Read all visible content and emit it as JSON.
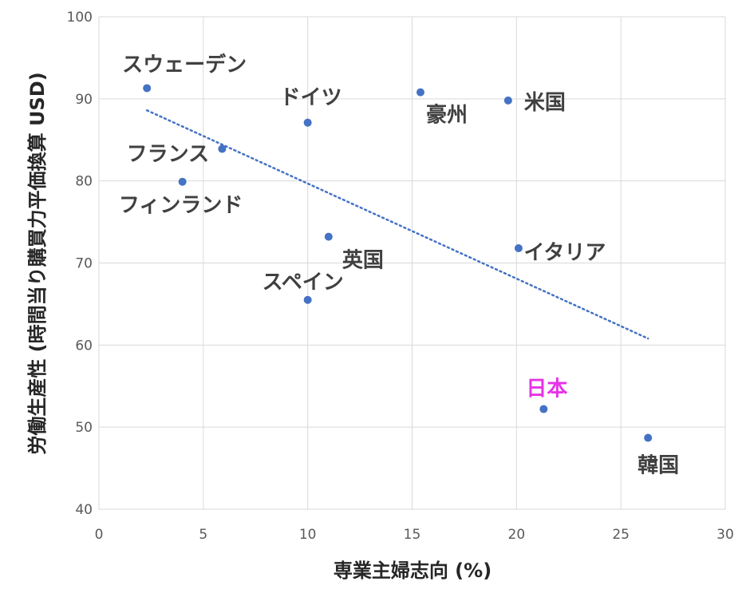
{
  "chart_data": {
    "type": "scatter",
    "title": "",
    "xlabel": "専業主婦志向 (%)",
    "ylabel": "労働生産性 (時間当り購買力平価換算 USD)",
    "xlim": [
      0,
      30
    ],
    "ylim": [
      40,
      100
    ],
    "xticks": [
      "0",
      "5",
      "10",
      "15",
      "20",
      "25",
      "30"
    ],
    "yticks": [
      "40",
      "50",
      "60",
      "70",
      "80",
      "90",
      "100"
    ],
    "grid": true,
    "legend": "none",
    "point_color": "#4472C4",
    "label_color": "#404040",
    "highlight_color": "#E633E6",
    "points": [
      {
        "label": "スウェーデン",
        "x": 2.3,
        "y": 91.3
      },
      {
        "label": "フランス",
        "x": 5.9,
        "y": 83.9
      },
      {
        "label": "フィンランド",
        "x": 4.0,
        "y": 79.9
      },
      {
        "label": "ドイツ",
        "x": 10.0,
        "y": 87.1
      },
      {
        "label": "豪州",
        "x": 15.4,
        "y": 90.8
      },
      {
        "label": "米国",
        "x": 19.6,
        "y": 89.8
      },
      {
        "label": "英国",
        "x": 11.0,
        "y": 73.2
      },
      {
        "label": "スペイン",
        "x": 10.0,
        "y": 65.5
      },
      {
        "label": "イタリア",
        "x": 20.1,
        "y": 71.8
      },
      {
        "label": "日本",
        "x": 21.3,
        "y": 52.2,
        "highlight": true
      },
      {
        "label": "韓国",
        "x": 26.3,
        "y": 48.7
      }
    ],
    "trendline": {
      "type": "linear",
      "style": "dotted",
      "x": [
        2.3,
        26.3
      ],
      "y": [
        88.6,
        60.8
      ]
    }
  }
}
